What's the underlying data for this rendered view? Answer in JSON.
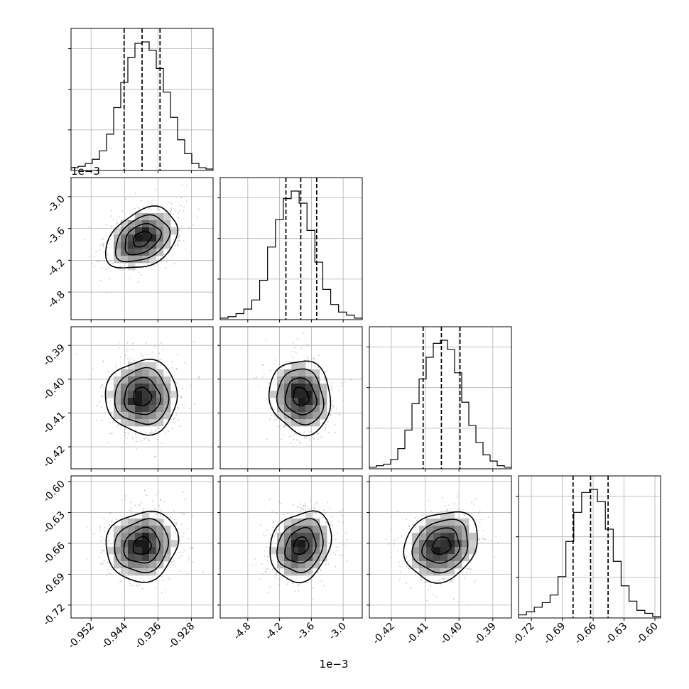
{
  "chart_data": {
    "type": "corner",
    "grid": true,
    "parameters": [
      {
        "ticks": [
          "-0.952",
          "-0.944",
          "-0.936",
          "-0.928"
        ],
        "tick_values": [
          -0.952,
          -0.944,
          -0.936,
          -0.928
        ],
        "range": [
          -0.9568,
          -0.9228
        ],
        "quantiles": [
          -0.9441,
          -0.9398,
          -0.9355
        ],
        "offset_text": ""
      },
      {
        "ticks": [
          "-4.8",
          "-4.2",
          "-3.6",
          "-3.0"
        ],
        "tick_values": [
          -4.8,
          -4.2,
          -3.6,
          -3.0
        ],
        "range": [
          -5.32,
          -2.64
        ],
        "quantiles": [
          -4.08,
          -3.8,
          -3.5
        ],
        "offset_text": "1e−3"
      },
      {
        "ticks": [
          "-0.42",
          "-0.41",
          "-0.40",
          "-0.39"
        ],
        "tick_values": [
          -0.42,
          -0.41,
          -0.4,
          -0.39
        ],
        "range": [
          -0.4265,
          -0.3845
        ],
        "quantiles": [
          -0.4106,
          -0.4052,
          -0.3997
        ],
        "offset_text": ""
      },
      {
        "ticks": [
          "-0.72",
          "-0.69",
          "-0.66",
          "-0.63",
          "-0.60"
        ],
        "tick_values": [
          -0.72,
          -0.69,
          -0.66,
          -0.63,
          -0.6
        ],
        "range": [
          -0.7325,
          -0.5945
        ],
        "quantiles": [
          -0.6795,
          -0.6625,
          -0.6455
        ],
        "offset_text": ""
      }
    ],
    "marginals": [
      {
        "counts": [
          2,
          3,
          5,
          8,
          14,
          26,
          45,
          63,
          81,
          91,
          92,
          86,
          73,
          56,
          38,
          22,
          12,
          5,
          2,
          1
        ]
      },
      {
        "counts": [
          1,
          2,
          4,
          7,
          13,
          26,
          48,
          66,
          80,
          85,
          77,
          59,
          38,
          20,
          10,
          5,
          3,
          1
        ]
      },
      {
        "counts": [
          1,
          2,
          3,
          6,
          13,
          25,
          42,
          58,
          72,
          81,
          83,
          77,
          62,
          43,
          28,
          17,
          9,
          5,
          2,
          1
        ]
      },
      {
        "counts": [
          2,
          4,
          7,
          10,
          15,
          27,
          50,
          69,
          82,
          84,
          76,
          58,
          37,
          21,
          11,
          5,
          3,
          1
        ]
      }
    ],
    "correlations": [
      {
        "pair": [
          0,
          1
        ],
        "rho": 0.35
      },
      {
        "pair": [
          0,
          2
        ],
        "rho": 0.0
      },
      {
        "pair": [
          1,
          2
        ],
        "rho": -0.1
      },
      {
        "pair": [
          0,
          3
        ],
        "rho": 0.1
      },
      {
        "pair": [
          1,
          3
        ],
        "rho": 0.2
      },
      {
        "pair": [
          2,
          3
        ],
        "rho": 0.18
      }
    ],
    "contour_levels": [
      0.5,
      1.0,
      1.5,
      2.0
    ]
  }
}
